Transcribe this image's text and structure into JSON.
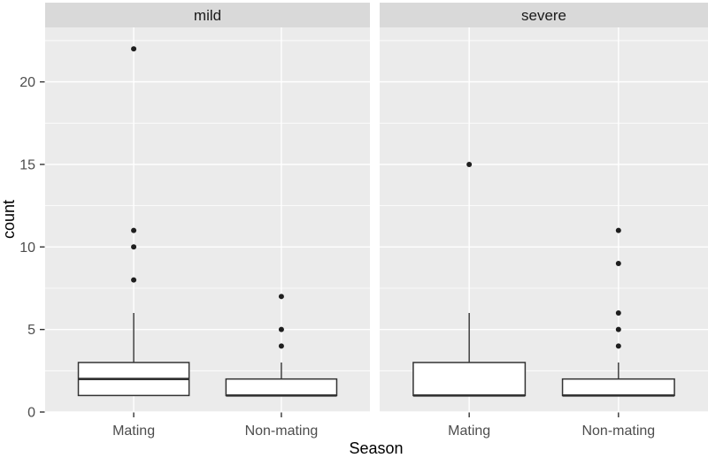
{
  "chart_data": {
    "type": "boxplot",
    "title": "",
    "xlabel": "Season",
    "ylabel": "count",
    "categories": [
      "Mating",
      "Non-mating"
    ],
    "y_ticks": [
      0,
      5,
      10,
      15,
      20
    ],
    "y_minor_ticks": [
      2.5,
      7.5,
      12.5,
      17.5,
      22.5
    ],
    "ylim": [
      0,
      23.3
    ],
    "grid": true,
    "legend": "none",
    "facets": [
      {
        "label": "mild",
        "boxes": [
          {
            "category": "Mating",
            "q1": 1,
            "median": 2,
            "q3": 3,
            "whisker_low": 1,
            "whisker_high": 6,
            "outliers": [
              8,
              10,
              11,
              22
            ]
          },
          {
            "category": "Non-mating",
            "q1": 1,
            "median": 1,
            "q3": 2,
            "whisker_low": 1,
            "whisker_high": 3,
            "outliers": [
              4,
              5,
              7
            ]
          }
        ]
      },
      {
        "label": "severe",
        "boxes": [
          {
            "category": "Mating",
            "q1": 1,
            "median": 1,
            "q3": 3,
            "whisker_low": 1,
            "whisker_high": 6,
            "outliers": [
              15
            ]
          },
          {
            "category": "Non-mating",
            "q1": 1,
            "median": 1,
            "q3": 2,
            "whisker_low": 1,
            "whisker_high": 3,
            "outliers": [
              4,
              5,
              6,
              9,
              11
            ]
          }
        ]
      }
    ],
    "style": {
      "background": "#ffffff",
      "strip_bg": "#d9d9d9",
      "strip_text_color": "#1a1a1a",
      "panel_bg": "#ebebeb",
      "grid_color": "#ffffff",
      "box_fill": "#ffffff",
      "box_stroke": "#333333",
      "outlier_color": "#1f1f1f",
      "tick_mark_color": "#333333",
      "tick_label_color": "#4d4d4d",
      "axis_title_color": "#000000"
    }
  }
}
